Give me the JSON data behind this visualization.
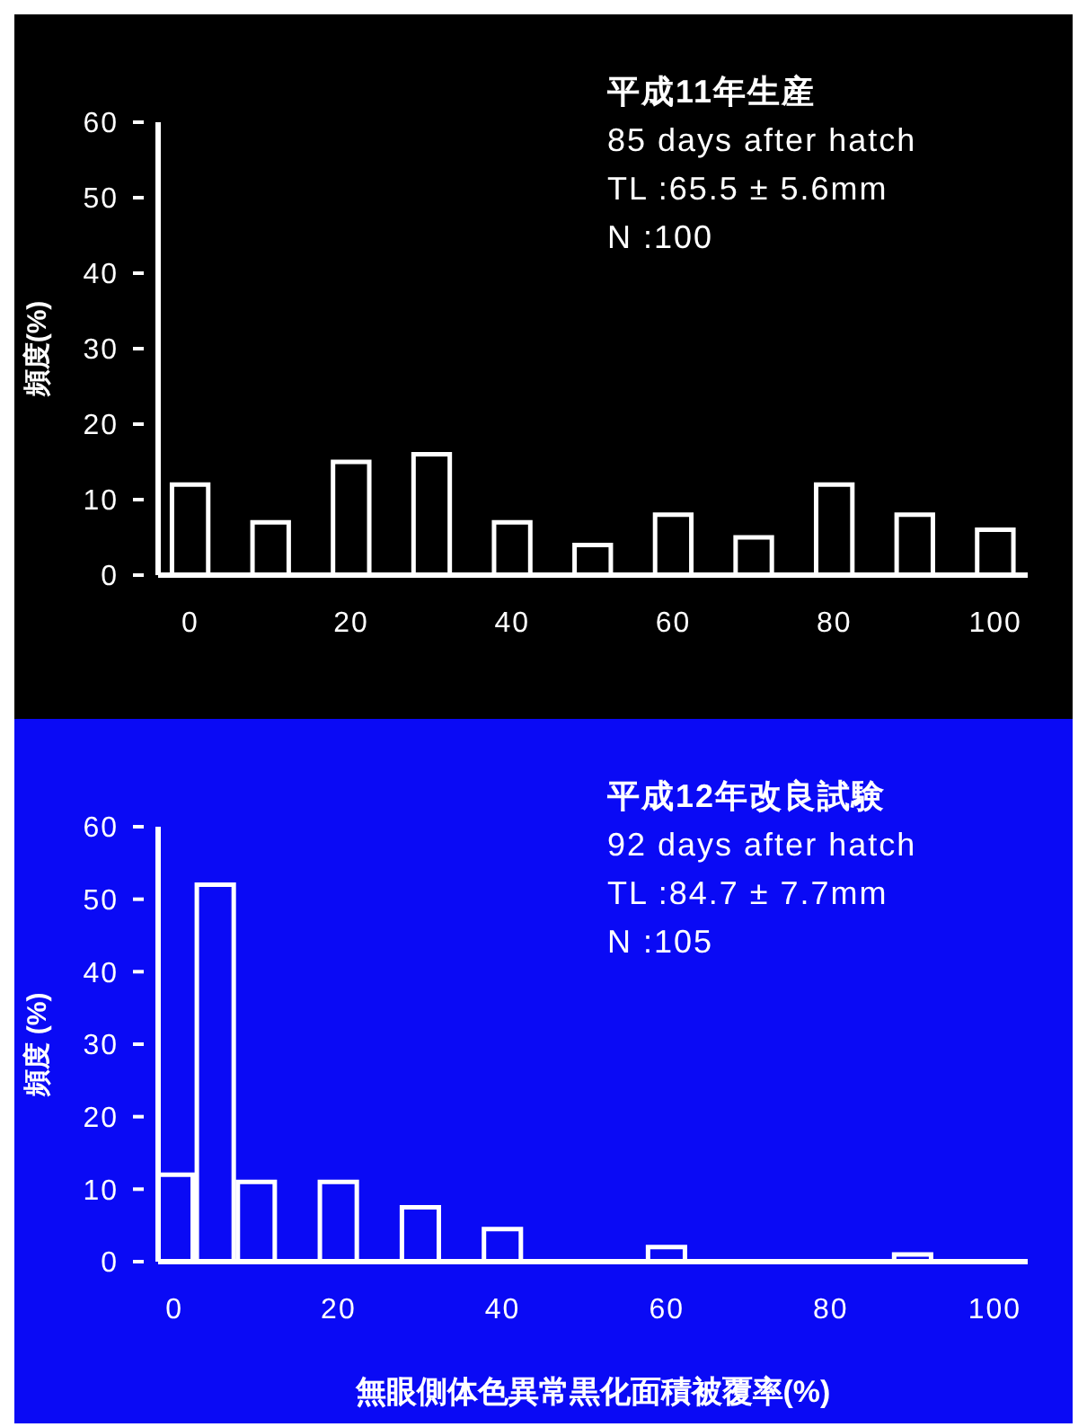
{
  "chart_data": [
    {
      "type": "histogram",
      "ylabel": "頻度(%)",
      "bins": [
        -2.5,
        2.5,
        7.5,
        12.5,
        17.5,
        22.5,
        27.5,
        32.5,
        37.5,
        42.5,
        47.5,
        52.5,
        57.5,
        62.5,
        67.5,
        72.5,
        77.5,
        82.5,
        87.5,
        92.5,
        97.5,
        102.5
      ],
      "values": [
        12,
        0,
        7,
        0,
        15,
        0,
        16,
        0,
        7,
        0,
        4,
        0,
        8,
        0,
        5,
        0,
        12,
        0,
        8,
        0,
        6
      ],
      "color": "#ffffff",
      "xlim": [
        -4,
        104
      ],
      "xticks": [
        0,
        20,
        40,
        60,
        80,
        100
      ],
      "ylim": [
        0,
        60
      ],
      "yticks": [
        0,
        10,
        20,
        30,
        40,
        50,
        60
      ],
      "grid": false,
      "legend": false,
      "annotations": [
        "平成11年生産",
        "85 days after hatch",
        "TL :65.5 ± 5.6mm",
        "N :100"
      ]
    },
    {
      "type": "histogram",
      "ylabel": "頻度 (%)",
      "xlabel": "無眼側体色異常黒化面積被覆率(%)",
      "bins": [
        -2.5,
        2.5,
        7.5,
        12.5,
        17.5,
        22.5,
        27.5,
        32.5,
        37.5,
        42.5,
        47.5,
        52.5,
        57.5,
        62.5,
        67.5,
        72.5,
        77.5,
        82.5,
        87.5,
        92.5,
        97.5,
        102.5
      ],
      "values": [
        12,
        52,
        11,
        0,
        11,
        0,
        7.5,
        0,
        4.5,
        0,
        0,
        0,
        2,
        0,
        0,
        0,
        0,
        0,
        1,
        0,
        0
      ],
      "color": "#ffffff",
      "xlim": [
        -2,
        104
      ],
      "xticks": [
        0,
        20,
        40,
        60,
        80,
        100
      ],
      "ylim": [
        0,
        60
      ],
      "yticks": [
        0,
        10,
        20,
        30,
        40,
        50,
        60
      ],
      "grid": false,
      "legend": false,
      "annotations": [
        "平成12年改良試験",
        "92 days after hatch",
        "TL :84.7 ± 7.7mm",
        "N :105"
      ]
    }
  ]
}
